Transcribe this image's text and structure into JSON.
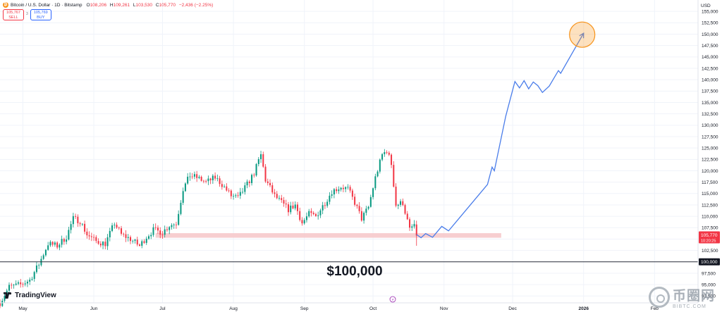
{
  "header": {
    "symbol_icon": "bitcoin-icon",
    "symbol_glyph": "₿",
    "title": "Bitcoin / U.S. Dollar · 1D · Bitstamp",
    "ohlc": [
      {
        "key": "O",
        "value": "108,206"
      },
      {
        "key": "H",
        "value": "109,261"
      },
      {
        "key": "L",
        "value": "103,530"
      },
      {
        "key": "C",
        "value": "105,770"
      }
    ],
    "change": "−2,436 (−2.25%)"
  },
  "trade": {
    "sell_price": "105,767",
    "sell_label": "SELL",
    "spread": "3",
    "buy_price": "105,769",
    "buy_label": "BUY"
  },
  "brand": {
    "logo_text": "TradingView",
    "logo_icon": "tradingview-icon"
  },
  "watermark": {
    "big": "币圈网",
    "small": "BIBTC.COM",
    "icon": "bibtc-logo-icon"
  },
  "colors": {
    "up": "#089981",
    "down": "#f23645",
    "projection": "#4a7dea",
    "target": "#f7931a",
    "support_zone": "#f6c5c8"
  },
  "chart_data": {
    "type": "candlestick",
    "currency": "USD",
    "ylim": [
      91000,
      157500
    ],
    "yticks": [
      92500,
      95000,
      97500,
      100000,
      102500,
      105000,
      107500,
      110000,
      112500,
      115000,
      117500,
      120000,
      122500,
      125000,
      127500,
      130000,
      132500,
      135000,
      137500,
      140000,
      142500,
      145000,
      147500,
      150000,
      152500,
      155000
    ],
    "ytick_labels": [
      "92,500",
      "95,000",
      "97,500",
      "100,000",
      "102,500",
      "105,000",
      "107,500",
      "110,000",
      "112,500",
      "115,000",
      "117,500",
      "120,000",
      "122,500",
      "125,000",
      "127,500",
      "130,000",
      "132,500",
      "135,000",
      "137,500",
      "140,000",
      "142,500",
      "145,000",
      "147,500",
      "150,000",
      "152,500",
      "155,000"
    ],
    "xdomain": [
      "2025-04-21",
      "2026-02-20"
    ],
    "xticks": [
      {
        "date": "2025-05-01",
        "label": "May",
        "bold": false
      },
      {
        "date": "2025-06-01",
        "label": "Jun",
        "bold": false
      },
      {
        "date": "2025-07-01",
        "label": "Jul",
        "bold": false
      },
      {
        "date": "2025-08-01",
        "label": "Aug",
        "bold": false
      },
      {
        "date": "2025-09-01",
        "label": "Sep",
        "bold": false
      },
      {
        "date": "2025-10-01",
        "label": "Oct",
        "bold": false
      },
      {
        "date": "2025-11-01",
        "label": "Nov",
        "bold": false
      },
      {
        "date": "2025-12-01",
        "label": "Dec",
        "bold": false
      },
      {
        "date": "2026-01-01",
        "label": "2026",
        "bold": true
      },
      {
        "date": "2026-02-01",
        "label": "Feb",
        "bold": false
      }
    ],
    "key_level": {
      "value": 100000,
      "label": "100,000",
      "annotation": "$100,000"
    },
    "support_zone": {
      "low": 105300,
      "high": 106300,
      "from": "2025-06-28",
      "to": "2025-11-26"
    },
    "last_price": {
      "label": "105,770",
      "countdown": "10:20:25",
      "value": 105770
    },
    "close_path": [
      [
        "2025-04-21",
        91000
      ],
      [
        "2025-04-25",
        94500
      ],
      [
        "2025-04-30",
        95000
      ],
      [
        "2025-05-04",
        96000
      ],
      [
        "2025-05-08",
        99500
      ],
      [
        "2025-05-12",
        104000
      ],
      [
        "2025-05-16",
        103500
      ],
      [
        "2025-05-20",
        105500
      ],
      [
        "2025-05-23",
        109500
      ],
      [
        "2025-05-26",
        109000
      ],
      [
        "2025-05-29",
        106000
      ],
      [
        "2025-06-02",
        104500
      ],
      [
        "2025-06-06",
        104000
      ],
      [
        "2025-06-10",
        108500
      ],
      [
        "2025-06-13",
        106000
      ],
      [
        "2025-06-17",
        105000
      ],
      [
        "2025-06-21",
        103500
      ],
      [
        "2025-06-24",
        105500
      ],
      [
        "2025-06-27",
        107000
      ],
      [
        "2025-07-01",
        106500
      ],
      [
        "2025-07-04",
        108000
      ],
      [
        "2025-07-07",
        108500
      ],
      [
        "2025-07-10",
        116000
      ],
      [
        "2025-07-13",
        119000
      ],
      [
        "2025-07-16",
        118500
      ],
      [
        "2025-07-20",
        117500
      ],
      [
        "2025-07-24",
        118500
      ],
      [
        "2025-07-27",
        117000
      ],
      [
        "2025-07-31",
        114500
      ],
      [
        "2025-08-03",
        114000
      ],
      [
        "2025-08-07",
        117000
      ],
      [
        "2025-08-10",
        119500
      ],
      [
        "2025-08-13",
        123500
      ],
      [
        "2025-08-15",
        118000
      ],
      [
        "2025-08-19",
        114500
      ],
      [
        "2025-08-22",
        113000
      ],
      [
        "2025-08-25",
        111500
      ],
      [
        "2025-08-28",
        112500
      ],
      [
        "2025-08-31",
        108500
      ],
      [
        "2025-09-03",
        110500
      ],
      [
        "2025-09-06",
        110000
      ],
      [
        "2025-09-10",
        113000
      ],
      [
        "2025-09-13",
        115500
      ],
      [
        "2025-09-17",
        116500
      ],
      [
        "2025-09-20",
        116000
      ],
      [
        "2025-09-23",
        113000
      ],
      [
        "2025-09-26",
        109500
      ],
      [
        "2025-09-29",
        112000
      ],
      [
        "2025-10-02",
        118500
      ],
      [
        "2025-10-05",
        123500
      ],
      [
        "2025-10-07",
        124500
      ],
      [
        "2025-10-09",
        121500
      ],
      [
        "2025-10-11",
        112500
      ],
      [
        "2025-10-14",
        113000
      ],
      [
        "2025-10-17",
        107000
      ],
      [
        "2025-10-19",
        108200
      ],
      [
        "2025-10-20",
        105770
      ]
    ],
    "projection": [
      [
        "2025-10-20",
        106000
      ],
      [
        "2025-10-22",
        105300
      ],
      [
        "2025-10-24",
        106200
      ],
      [
        "2025-10-27",
        105400
      ],
      [
        "2025-10-31",
        107800
      ],
      [
        "2025-11-03",
        106800
      ],
      [
        "2025-11-10",
        111000
      ],
      [
        "2025-11-20",
        117000
      ],
      [
        "2025-11-22",
        120800
      ],
      [
        "2025-11-23",
        120000
      ],
      [
        "2025-11-28",
        132000
      ],
      [
        "2025-12-02",
        139600
      ],
      [
        "2025-12-04",
        138200
      ],
      [
        "2025-12-06",
        139800
      ],
      [
        "2025-12-08",
        138000
      ],
      [
        "2025-12-10",
        139500
      ],
      [
        "2025-12-12",
        138700
      ],
      [
        "2025-12-14",
        137200
      ],
      [
        "2025-12-17",
        138600
      ],
      [
        "2025-12-21",
        142000
      ],
      [
        "2025-12-22",
        141400
      ],
      [
        "2026-01-01",
        150200
      ]
    ],
    "target": {
      "date": "2026-01-01",
      "value": 150200
    }
  }
}
